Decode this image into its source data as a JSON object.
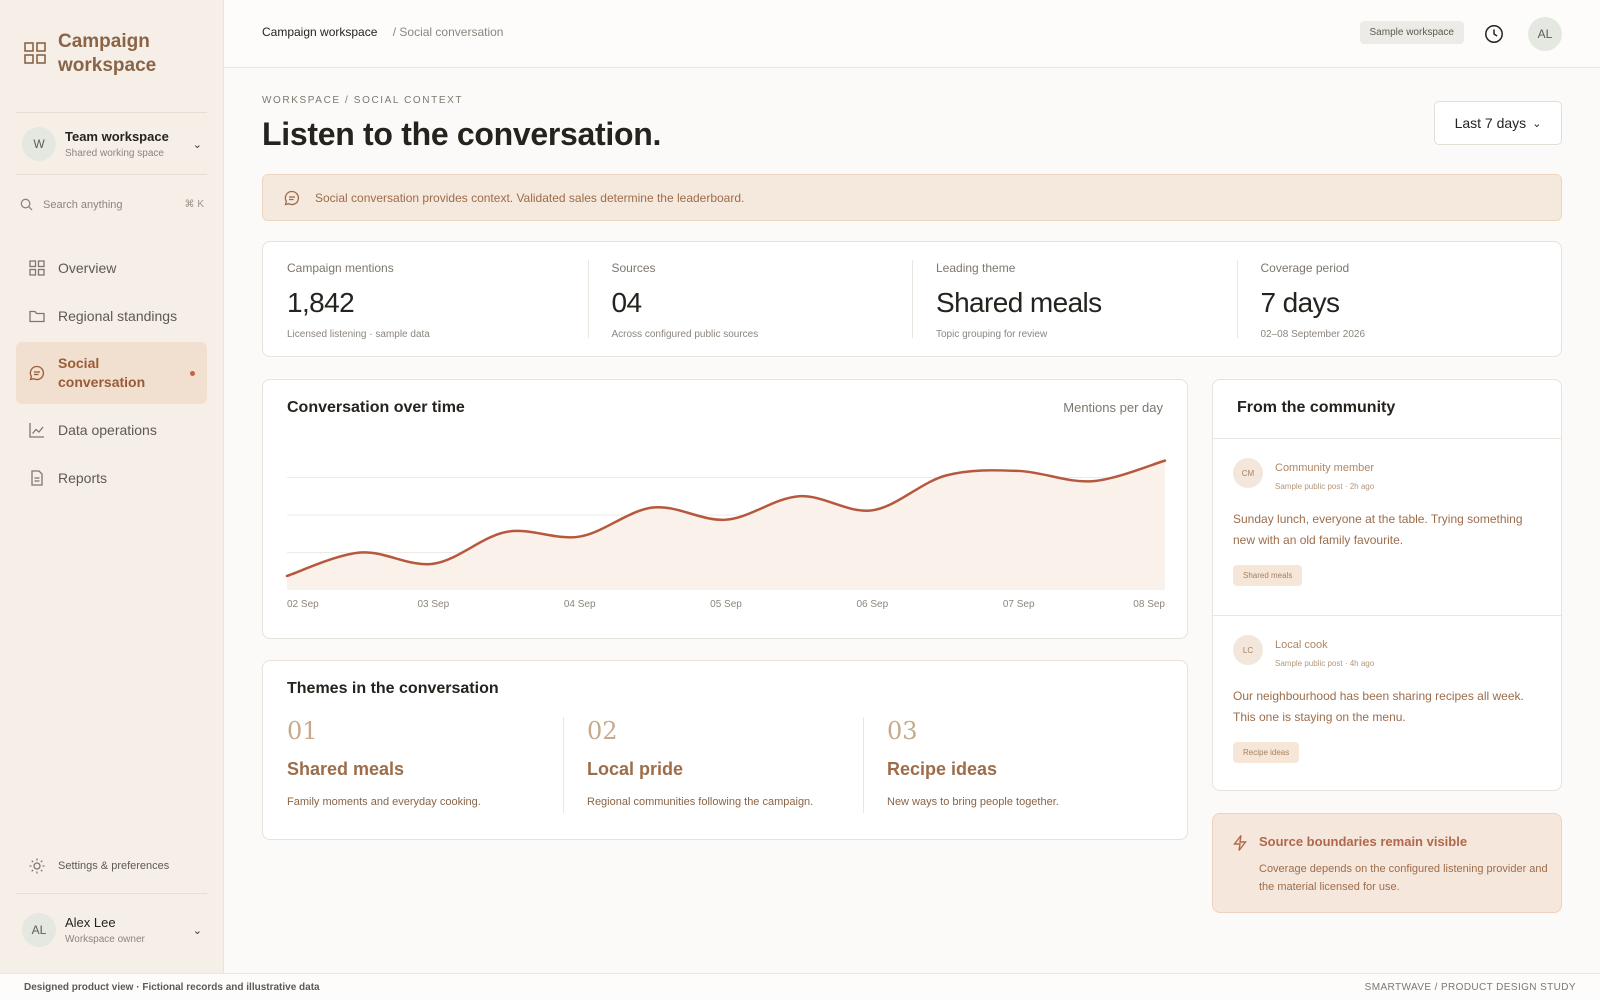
{
  "sidebar": {
    "brand": "Campaign workspace",
    "team": {
      "initial": "W",
      "title": "Team workspace",
      "subtitle": "Shared working space"
    },
    "search": {
      "placeholder": "Search anything",
      "shortcut": "⌘ K"
    },
    "items": [
      {
        "label": "Overview",
        "icon": "grid-icon"
      },
      {
        "label": "Regional standings",
        "icon": "folder-icon"
      },
      {
        "label": "Social conversation",
        "icon": "chat-bubble-icon",
        "active": true
      },
      {
        "label": "Data operations",
        "icon": "line-chart-icon"
      },
      {
        "label": "Reports",
        "icon": "document-icon"
      }
    ],
    "settings": "Settings & preferences",
    "user": {
      "initials": "AL",
      "name": "Alex Lee",
      "role": "Workspace owner"
    }
  },
  "topbar": {
    "breadcrumb_root": "Campaign workspace",
    "breadcrumb_current": "/ Social conversation",
    "workspace_badge": "Sample workspace",
    "avatar": "AL"
  },
  "page": {
    "eyebrow": "WORKSPACE / SOCIAL CONTEXT",
    "title": "Listen to the conversation.",
    "range": "Last 7 days",
    "notice": "Social conversation provides context. Validated sales determine the leaderboard."
  },
  "kpis": [
    {
      "label": "Campaign mentions",
      "value": "1,842",
      "sub": "Licensed listening · sample data"
    },
    {
      "label": "Sources",
      "value": "04",
      "sub": "Across configured public sources"
    },
    {
      "label": "Leading theme",
      "value": "Shared meals",
      "sub": "Topic grouping for review"
    },
    {
      "label": "Coverage period",
      "value": "7 days",
      "sub": "02–08 September 2026"
    }
  ],
  "chart": {
    "title": "Conversation over time",
    "unit": "Mentions per day"
  },
  "chart_data": {
    "type": "area",
    "categories": [
      "02 Sep",
      "03 Sep",
      "04 Sep",
      "05 Sep",
      "06 Sep",
      "07 Sep",
      "08 Sep"
    ],
    "x": [
      0,
      0.5,
      1,
      1.5,
      2,
      2.5,
      3,
      3.5,
      4,
      4.5,
      5,
      5.5,
      6
    ],
    "values": [
      15,
      40,
      28,
      62,
      57,
      88,
      75,
      100,
      85,
      122,
      127,
      116,
      138
    ],
    "ylim": [
      0,
      160
    ],
    "grid": true,
    "color": "#b6583d"
  },
  "themes": {
    "title": "Themes in the conversation",
    "items": [
      {
        "num": "01",
        "name": "Shared meals",
        "desc": "Family moments and everyday cooking."
      },
      {
        "num": "02",
        "name": "Local pride",
        "desc": "Regional communities following the campaign."
      },
      {
        "num": "03",
        "name": "Recipe ideas",
        "desc": "New ways to bring people together."
      }
    ]
  },
  "community": {
    "title": "From the community",
    "posts": [
      {
        "initials": "CM",
        "name": "Community member",
        "meta": "Sample public post · 2h ago",
        "text": "Sunday lunch, everyone at the table. Trying something new with an old family favourite.",
        "tag": "Shared meals"
      },
      {
        "initials": "LC",
        "name": "Local cook",
        "meta": "Sample public post · 4h ago",
        "text": "Our neighbourhood has been sharing recipes all week. This one is staying on the menu.",
        "tag": "Recipe ideas"
      }
    ]
  },
  "boundary": {
    "title": "Source boundaries remain visible",
    "text": "Coverage depends on the configured listening provider and the material licensed for use."
  },
  "footer": {
    "left": "Designed product view · Fictional records and illustrative data",
    "right": "SMARTWAVE / PRODUCT DESIGN STUDY"
  }
}
